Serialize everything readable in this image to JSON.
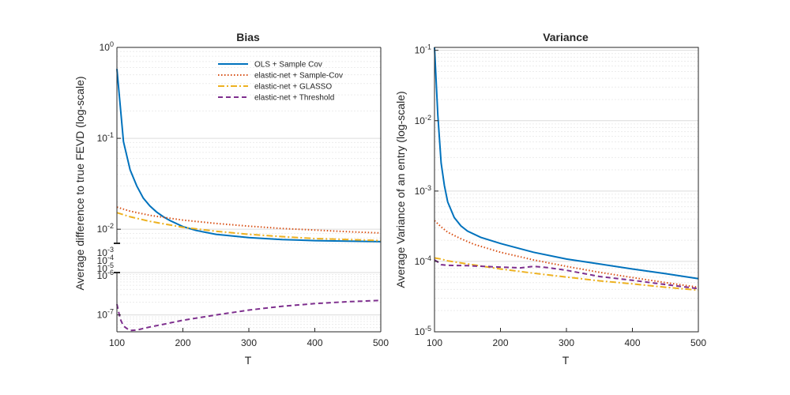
{
  "chart_data": [
    {
      "type": "line",
      "title": "Bias",
      "xlabel": "T",
      "ylabel": "Average difference to true FEVD (log-scale)",
      "xlim": [
        100,
        500
      ],
      "x_ticks": [
        "100",
        "200",
        "300",
        "400",
        "500"
      ],
      "y_scale": "log, broken axis (upper and lower segments)",
      "y_upper_range": [
        0.007,
        1
      ],
      "y_lower_range": [
        4e-08,
        1e-06
      ],
      "y_upper_ticks": [
        {
          "value": 1,
          "base": "10",
          "exp": "0"
        },
        {
          "value": 0.1,
          "base": "10",
          "exp": "-1"
        },
        {
          "value": 0.01,
          "base": "10",
          "exp": "-2"
        }
      ],
      "y_break_labels": [
        {
          "base": "10",
          "exp": "-3"
        },
        {
          "base": "10",
          "exp": "-4"
        },
        {
          "base": "10",
          "exp": "-5"
        },
        {
          "base": "10",
          "exp": "-6"
        }
      ],
      "y_lower_ticks": [
        {
          "value": 1e-07,
          "base": "10",
          "exp": "-7"
        }
      ],
      "grid": "minor log grid",
      "legend_position": "top-right",
      "series": [
        {
          "name": "OLS + Sample Cov",
          "color": "#0072BD",
          "dash": "solid",
          "x": [
            100,
            110,
            120,
            130,
            140,
            150,
            160,
            170,
            180,
            200,
            220,
            250,
            300,
            350,
            400,
            450,
            500
          ],
          "y": [
            0.58,
            0.092,
            0.045,
            0.03,
            0.022,
            0.018,
            0.0155,
            0.0138,
            0.0125,
            0.0107,
            0.0097,
            0.0088,
            0.0081,
            0.0077,
            0.0075,
            0.0074,
            0.0073
          ]
        },
        {
          "name": "elastic-net + Sample-Cov",
          "color": "#D95319",
          "dash": "dotted",
          "x": [
            100,
            120,
            150,
            200,
            250,
            300,
            350,
            400,
            450,
            500
          ],
          "y": [
            0.0175,
            0.0158,
            0.0142,
            0.0126,
            0.0116,
            0.0108,
            0.0102,
            0.0098,
            0.0094,
            0.0091
          ]
        },
        {
          "name": "elastic-net + GLASSO",
          "color": "#EDB120",
          "dash": "dashdot",
          "x": [
            100,
            120,
            150,
            200,
            250,
            300,
            350,
            400,
            450,
            500
          ],
          "y": [
            0.0152,
            0.0137,
            0.0122,
            0.0105,
            0.0095,
            0.0088,
            0.0083,
            0.0079,
            0.0077,
            0.0075
          ]
        },
        {
          "name": "elastic-net + Threshold",
          "color": "#7E2F8E",
          "dash": "dashed",
          "x": [
            100,
            105,
            110,
            115,
            120,
            130,
            140,
            150,
            170,
            200,
            250,
            300,
            350,
            400,
            450,
            500
          ],
          "y": [
            1.8e-07,
            8e-08,
            5.5e-08,
            4.8e-08,
            4.3e-08,
            4.4e-08,
            4.8e-08,
            5.2e-08,
            6e-08,
            7.5e-08,
            1e-07,
            1.3e-07,
            1.6e-07,
            1.85e-07,
            2.05e-07,
            2.2e-07
          ]
        }
      ]
    },
    {
      "type": "line",
      "title": "Variance",
      "xlabel": "T",
      "ylabel": "Average Variance of an entry (log-scale)",
      "xlim": [
        100,
        500
      ],
      "x_ticks": [
        "100",
        "200",
        "300",
        "400",
        "500"
      ],
      "y_scale": "log",
      "ylim": [
        1e-05,
        0.11
      ],
      "y_ticks": [
        {
          "value": 0.1,
          "base": "10",
          "exp": "-1"
        },
        {
          "value": 0.01,
          "base": "10",
          "exp": "-2"
        },
        {
          "value": 0.001,
          "base": "10",
          "exp": "-3"
        },
        {
          "value": 0.0001,
          "base": "10",
          "exp": "-4"
        },
        {
          "value": 1e-05,
          "base": "10",
          "exp": "-5"
        }
      ],
      "grid": "minor log grid",
      "series": [
        {
          "name": "OLS + Sample Cov",
          "color": "#0072BD",
          "dash": "solid",
          "x": [
            100,
            105,
            110,
            115,
            120,
            130,
            140,
            150,
            170,
            200,
            250,
            300,
            350,
            400,
            450,
            500
          ],
          "y": [
            0.11,
            0.012,
            0.0025,
            0.0012,
            0.0007,
            0.00042,
            0.00032,
            0.00027,
            0.00022,
            0.00018,
            0.000135,
            0.000108,
            9.2e-05,
            7.8e-05,
            6.7e-05,
            5.7e-05
          ]
        },
        {
          "name": "elastic-net + Sample-Cov",
          "color": "#D95319",
          "dash": "dotted",
          "x": [
            100,
            110,
            120,
            140,
            160,
            200,
            250,
            300,
            350,
            400,
            450,
            500
          ],
          "y": [
            0.00038,
            0.00031,
            0.00026,
            0.00021,
            0.000175,
            0.000135,
            0.000105,
            8.5e-05,
            7e-05,
            5.9e-05,
            5e-05,
            4.3e-05
          ]
        },
        {
          "name": "elastic-net + GLASSO",
          "color": "#EDB120",
          "dash": "dashdot",
          "x": [
            100,
            110,
            120,
            150,
            200,
            250,
            300,
            350,
            400,
            450,
            500
          ],
          "y": [
            0.000112,
            0.000108,
            0.000102,
            9.2e-05,
            7.8e-05,
            6.8e-05,
            6e-05,
            5.3e-05,
            4.8e-05,
            4.3e-05,
            3.9e-05
          ]
        },
        {
          "name": "elastic-net + Threshold",
          "color": "#7E2F8E",
          "dash": "dashed",
          "x": [
            100,
            105,
            110,
            120,
            150,
            200,
            230,
            250,
            270,
            300,
            350,
            400,
            450,
            500
          ],
          "y": [
            0.000105,
            9.8e-05,
            9e-05,
            8.8e-05,
            8.7e-05,
            8.3e-05,
            8.1e-05,
            8.5e-05,
            8.2e-05,
            7.5e-05,
            6.1e-05,
            5.4e-05,
            4.7e-05,
            4.1e-05
          ]
        }
      ]
    }
  ]
}
